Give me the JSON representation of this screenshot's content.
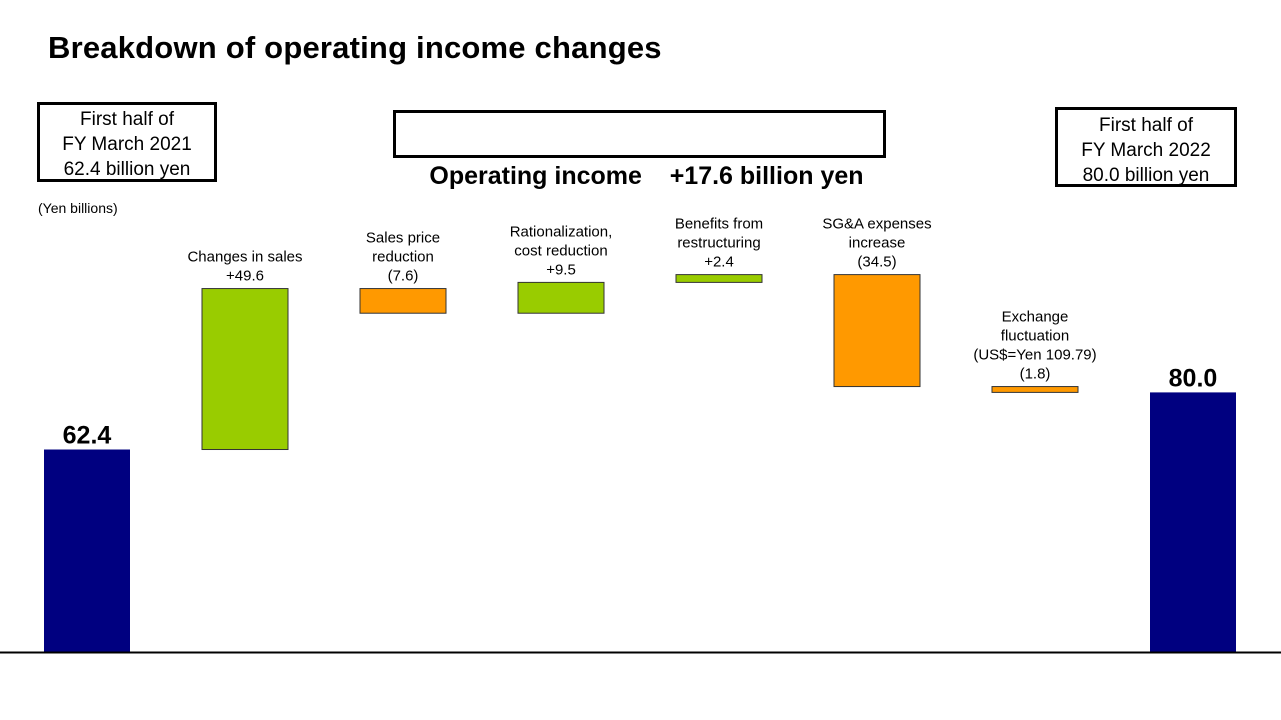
{
  "title": "Breakdown of operating income changes",
  "left_box": {
    "line1": "First half of",
    "line2": "FY March 2021",
    "line3": "62.4 billion  yen"
  },
  "right_box": {
    "line1": "First half of",
    "line2": "FY March 2022",
    "line3": "80.0 billion  yen"
  },
  "center_box": {
    "text": "Operating income    +17.6 billion yen"
  },
  "unit_label": "(Yen billions)",
  "colors": {
    "total": "#000080",
    "increase": "#99CC00",
    "decrease": "#FF9900",
    "axis": "#000000"
  },
  "chart_data": {
    "type": "waterfall",
    "title": "Breakdown of operating income changes",
    "ylabel": "(Yen billions)",
    "ylim": [
      0,
      100
    ],
    "grid": false,
    "steps": [
      {
        "kind": "total",
        "value": 62.4,
        "label_lines": [],
        "value_label": "62.4"
      },
      {
        "kind": "increase",
        "value": 49.6,
        "label_lines": [
          "Changes in sales",
          "+49.6"
        ]
      },
      {
        "kind": "decrease",
        "value": -7.6,
        "label_lines": [
          "Sales price",
          "reduction",
          "(7.6)"
        ]
      },
      {
        "kind": "increase",
        "value": 9.5,
        "label_lines": [
          "Rationalization,",
          "cost reduction",
          "+9.5"
        ]
      },
      {
        "kind": "increase",
        "value": 2.4,
        "label_lines": [
          "Benefits from",
          "restructuring",
          "+2.4"
        ]
      },
      {
        "kind": "decrease",
        "value": -34.5,
        "label_lines": [
          "SG&A expenses",
          "increase",
          "(34.5)"
        ]
      },
      {
        "kind": "decrease",
        "value": -1.8,
        "label_lines": [
          "Exchange",
          "fluctuation",
          "(US$=Yen 109.79)",
          "(1.8)"
        ]
      },
      {
        "kind": "total",
        "value": 80.0,
        "label_lines": [],
        "value_label": "80.0"
      }
    ]
  }
}
